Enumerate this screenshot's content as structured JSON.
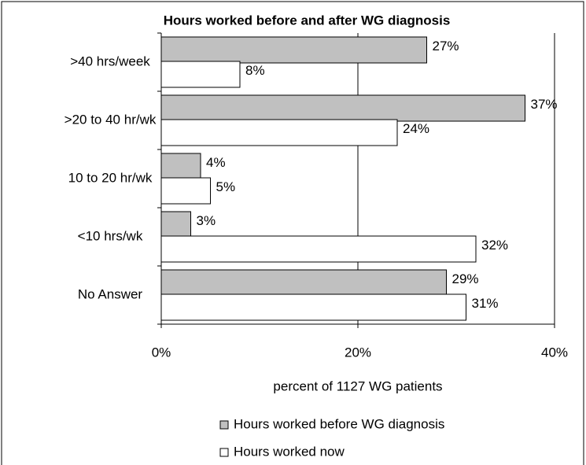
{
  "chart_data": {
    "type": "hbar",
    "title": "Hours worked before and after WG diagnosis",
    "xlabel": "percent of 1127  WG patients",
    "categories": [
      ">40 hrs/week",
      ">20 to 40 hr/wk",
      "10 to 20 hr/wk",
      "<10 hrs/wk",
      "No Answer"
    ],
    "series": [
      {
        "name": "Hours worked before WG diagnosis",
        "color": "#c0c0c0",
        "values": [
          27,
          37,
          4,
          3,
          29
        ],
        "value_labels": [
          "27%",
          "37%",
          "4%",
          "3%",
          "29%"
        ]
      },
      {
        "name": "Hours worked now",
        "color": "#ffffff",
        "values": [
          8,
          24,
          5,
          32,
          31
        ],
        "value_labels": [
          "8%",
          "24%",
          "5%",
          "32%",
          "31%"
        ]
      }
    ],
    "xlim": [
      0,
      40
    ],
    "xticks": [
      {
        "value": 0,
        "label": "0%"
      },
      {
        "value": 20,
        "label": "20%"
      },
      {
        "value": 40,
        "label": "40%"
      }
    ],
    "grid": true,
    "legend": "bottom"
  }
}
